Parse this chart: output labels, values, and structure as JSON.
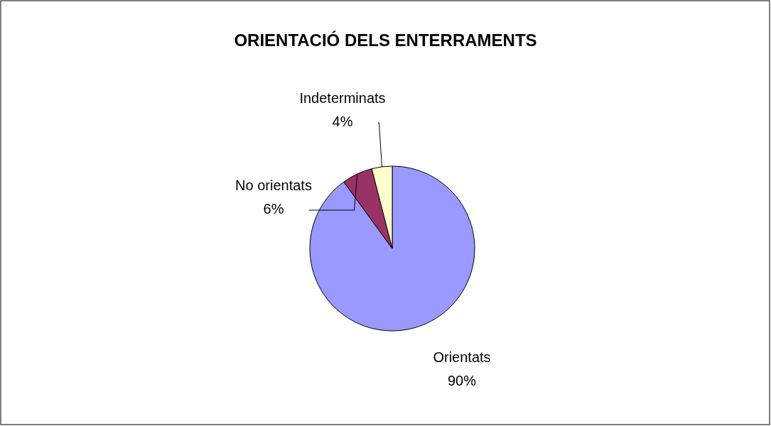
{
  "chart_data": {
    "type": "pie",
    "title": "ORIENTACIÓ DELS ENTERRAMENTS",
    "categories": [
      "Orientats",
      "No orientats",
      "Indeterminats"
    ],
    "values": [
      90,
      6,
      4
    ],
    "colors": [
      "#9999ff",
      "#993366",
      "#ffffcc"
    ],
    "value_labels": [
      "90%",
      "6%",
      "4%"
    ]
  }
}
